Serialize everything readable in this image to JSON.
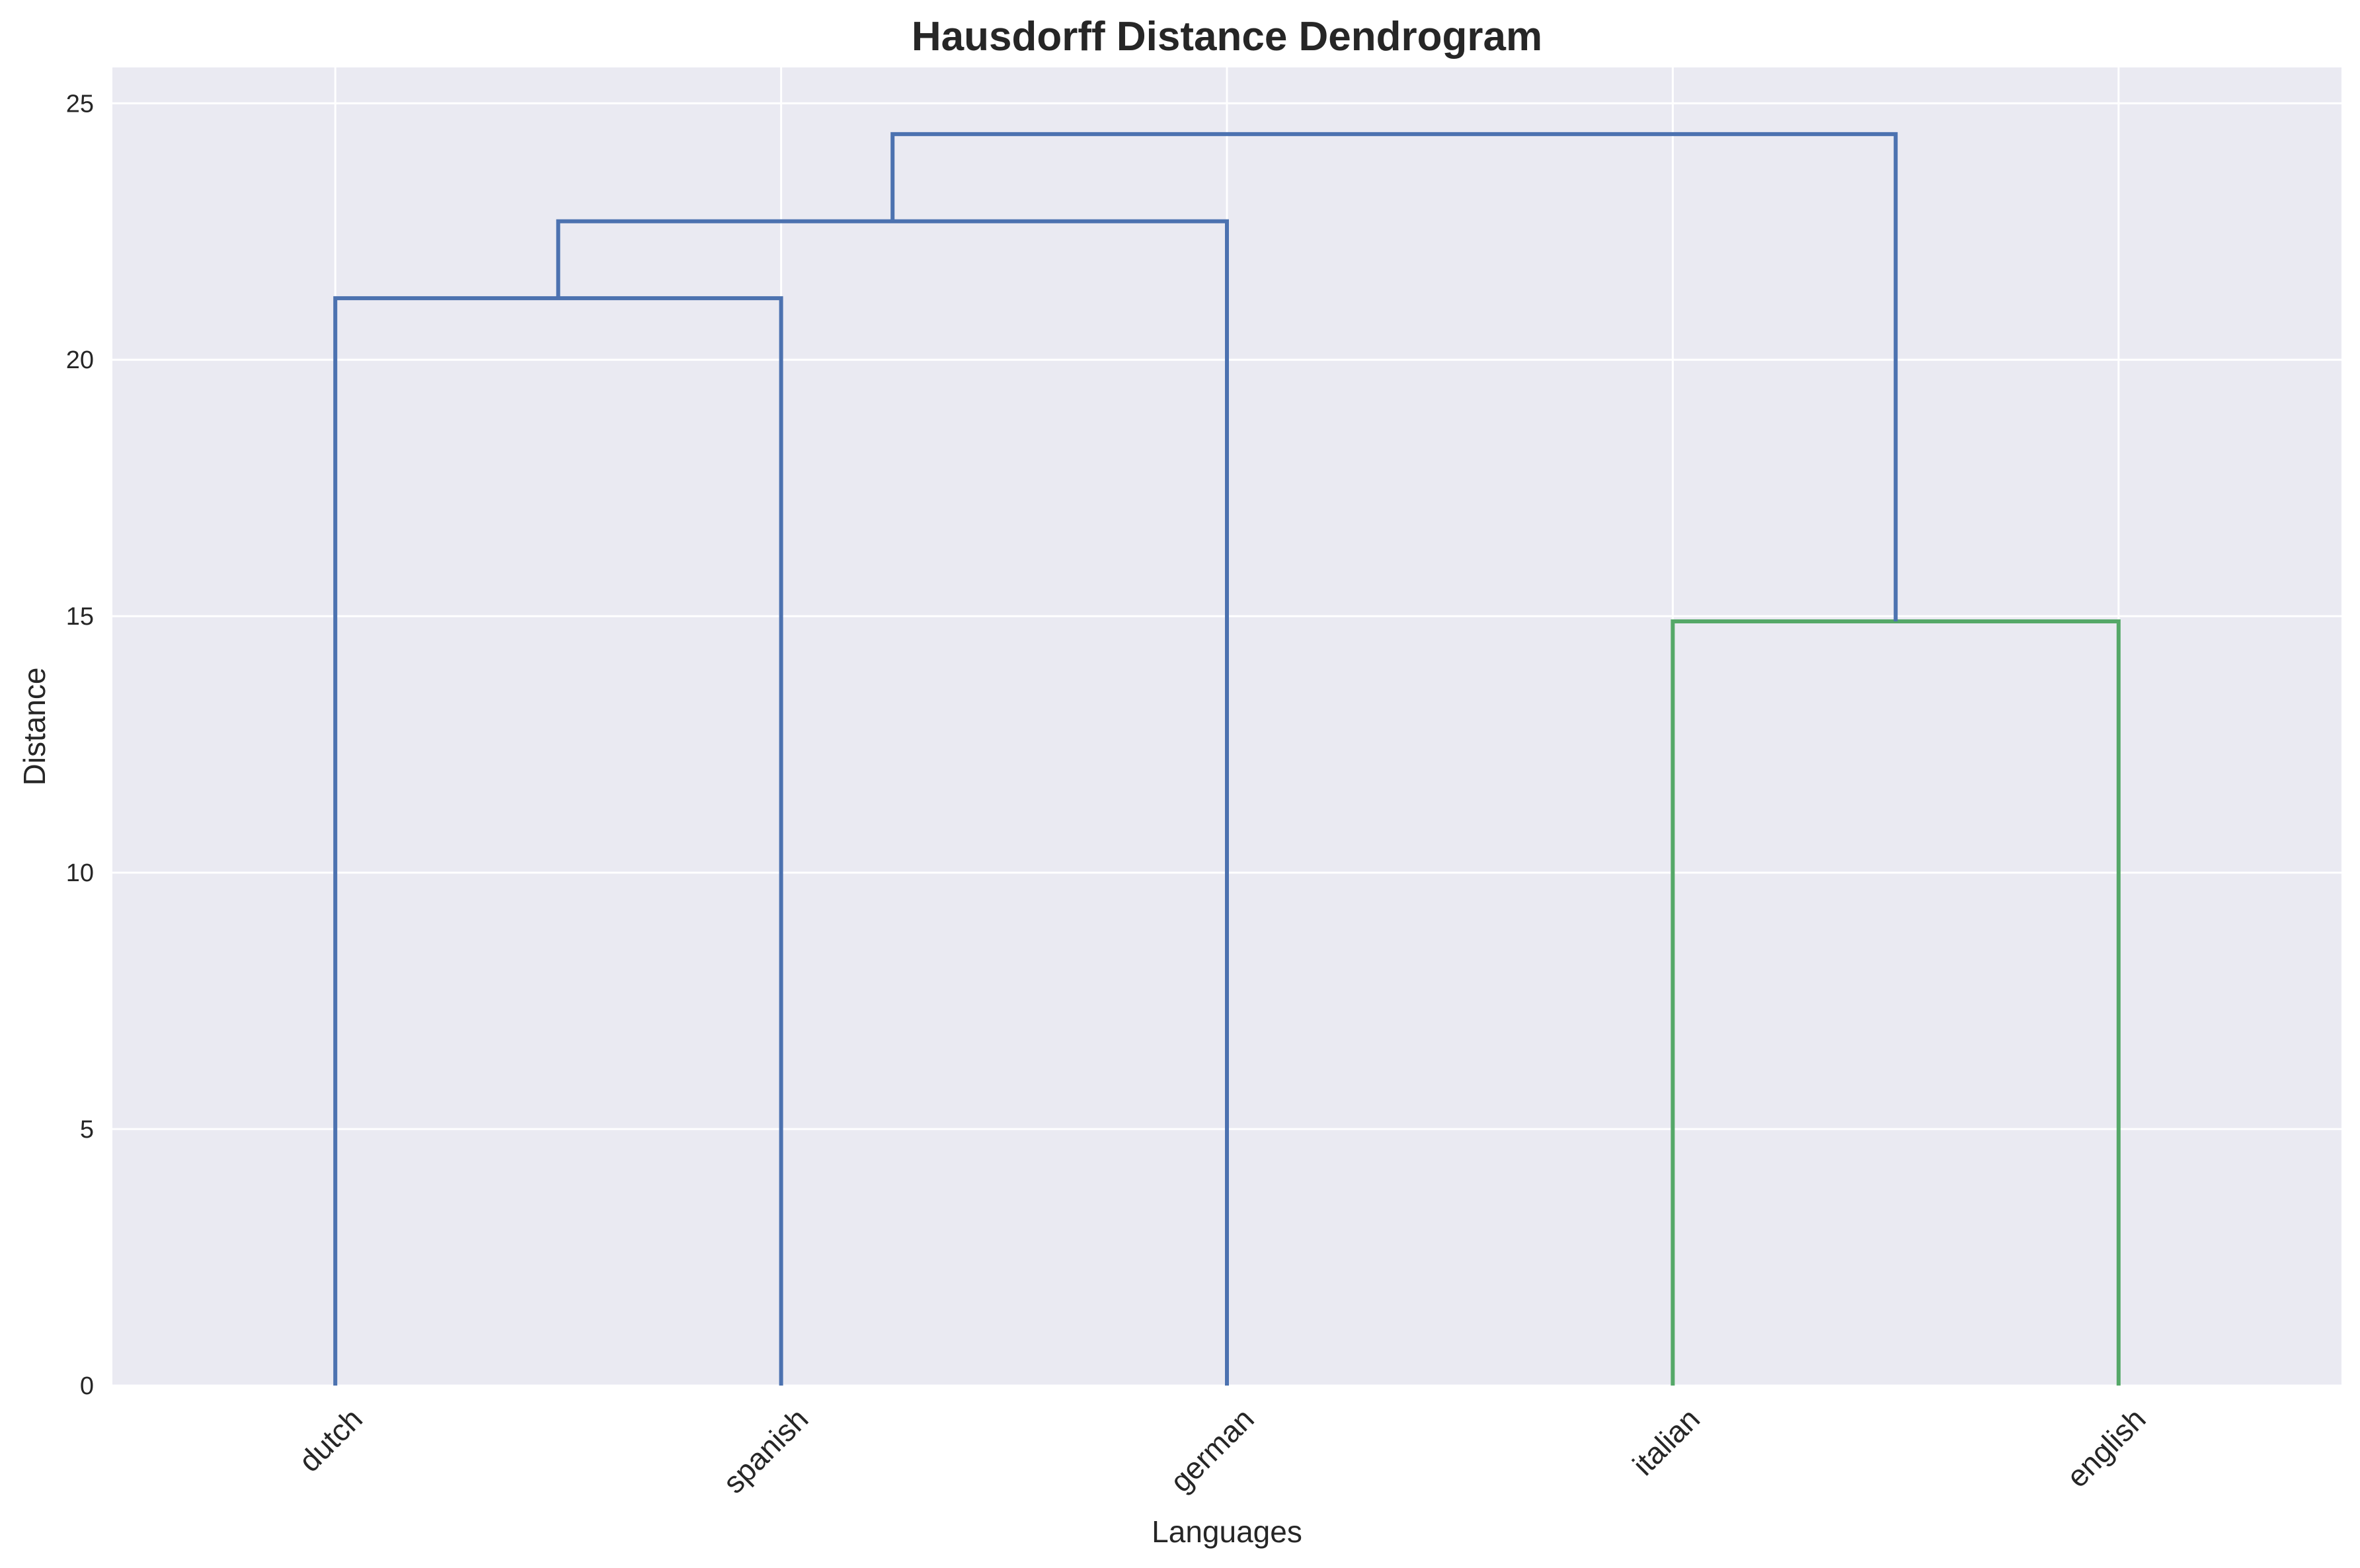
{
  "chart_data": {
    "type": "dendrogram",
    "title": "Hausdorff Distance Dendrogram",
    "xlabel": "Languages",
    "ylabel": "Distance",
    "leaves": [
      "dutch",
      "spanish",
      "german",
      "italian",
      "english"
    ],
    "ylim": [
      0,
      25.7
    ],
    "yticks": [
      0,
      5,
      10,
      15,
      20,
      25
    ],
    "grid": true,
    "background_color": "#eaeaf2",
    "grid_color": "#ffffff",
    "cluster_colors": {
      "blue": "#4c72b0",
      "green": "#55a868"
    },
    "merges": [
      {
        "left": 0,
        "right": 1,
        "height": 21.2,
        "color": "#4c72b0"
      },
      {
        "left": 3,
        "right": 4,
        "height": 14.9,
        "color": "#55a868"
      },
      {
        "left": 5,
        "right": 2,
        "height": 22.7,
        "color": "#4c72b0"
      },
      {
        "left": 7,
        "right": 6,
        "height": 24.4,
        "color": "#4c72b0"
      }
    ]
  }
}
